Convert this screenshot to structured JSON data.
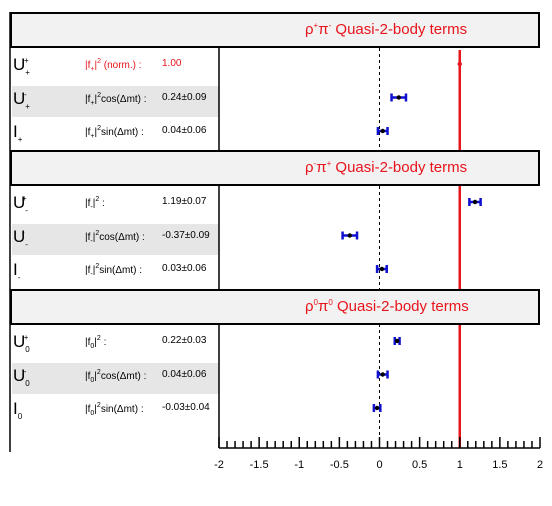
{
  "chart_data": {
    "type": "scatter",
    "xlim": [
      -2,
      2
    ],
    "x_ticks": [
      "-2",
      "-1.5",
      "-1",
      "-0.5",
      "0",
      "0.5",
      "1",
      "1.5",
      "2"
    ],
    "reference_line": 1,
    "zero_line": 0,
    "sections": [
      {
        "title_main": "ρ",
        "title_parts": [
          "+",
          "π",
          "-",
          " Quasi-2-body terms"
        ],
        "rows": [
          {
            "sym": "U",
            "sym_sub": "+",
            "sym_sup": "+",
            "label_pre": "|f",
            "label_sub": "+",
            "label_sup": "2",
            "label_post": " (norm.) :",
            "value_text": "1.00",
            "value": 1.0,
            "err": 0.0,
            "highlight": true
          },
          {
            "sym": "U",
            "sym_sub": "+",
            "sym_sup": "-",
            "label_pre": "|f",
            "label_sub": "+",
            "label_sup": "2",
            "label_post": "cos(Δmt)  :",
            "value_text": "0.24±0.09",
            "value": 0.24,
            "err": 0.09,
            "highlight": false
          },
          {
            "sym": "I",
            "sym_sub": "+",
            "sym_sup": "",
            "label_pre": "|f",
            "label_sub": "+",
            "label_sup": "2",
            "label_post": "sin(Δmt)  :",
            "value_text": "0.04±0.06",
            "value": 0.04,
            "err": 0.06,
            "highlight": false
          }
        ]
      },
      {
        "title_parts": [
          "-",
          "π",
          "+",
          " Quasi-2-body terms"
        ],
        "rows": [
          {
            "sym": "U",
            "sym_sub": "-",
            "sym_sup": "+",
            "label_pre": "|f",
            "label_sub": "-",
            "label_sup": "2",
            "label_post": "  :",
            "value_text": "1.19±0.07",
            "value": 1.19,
            "err": 0.07,
            "highlight": false
          },
          {
            "sym": "U",
            "sym_sub": "-",
            "sym_sup": "-",
            "label_pre": "|f",
            "label_sub": "-",
            "label_sup": "2",
            "label_post": "cos(Δmt)  :",
            "value_text": "-0.37±0.09",
            "value": -0.37,
            "err": 0.09,
            "highlight": false
          },
          {
            "sym": "I",
            "sym_sub": "-",
            "sym_sup": "",
            "label_pre": "|f",
            "label_sub": "-",
            "label_sup": "2",
            "label_post": "sin(Δmt)  :",
            "value_text": "0.03±0.06",
            "value": 0.03,
            "err": 0.06,
            "highlight": false
          }
        ]
      },
      {
        "title_parts": [
          "0",
          "π",
          "0",
          " Quasi-2-body terms"
        ],
        "rows": [
          {
            "sym": "U",
            "sym_sub": "0",
            "sym_sup": "+",
            "label_pre": "|f",
            "label_sub": "0",
            "label_sup": "2",
            "label_post": "  :",
            "value_text": "0.22±0.03",
            "value": 0.22,
            "err": 0.03,
            "highlight": false
          },
          {
            "sym": "U",
            "sym_sub": "0",
            "sym_sup": "-",
            "label_pre": "|f",
            "label_sub": "0",
            "label_sup": "2",
            "label_post": "cos(Δmt)  :",
            "value_text": "0.04±0.06",
            "value": 0.04,
            "err": 0.06,
            "highlight": false
          },
          {
            "sym": "I",
            "sym_sub": "0",
            "sym_sup": "",
            "label_pre": "|f",
            "label_sub": "0",
            "label_sup": "2",
            "label_post": "sin(Δmt)  :",
            "value_text": "-0.03±0.04",
            "value": -0.03,
            "err": 0.04,
            "highlight": false
          }
        ]
      }
    ],
    "colors": {
      "title": "#e8141c",
      "reference": "#e8141c",
      "points": "#1010d0",
      "shade": "#e6e6e6"
    }
  }
}
